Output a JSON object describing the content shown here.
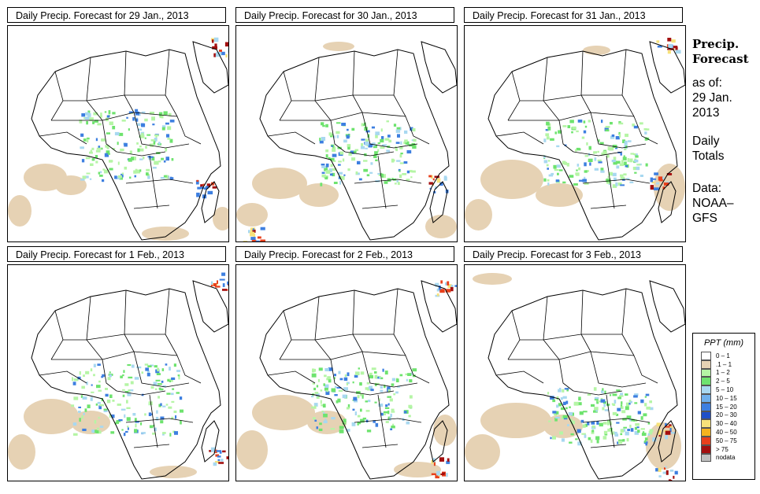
{
  "panels": [
    {
      "title": "Daily Precip. Forecast for  29 Jan., 2013"
    },
    {
      "title": "Daily Precip. Forecast for  30 Jan., 2013"
    },
    {
      "title": "Daily Precip. Forecast for  31 Jan., 2013"
    },
    {
      "title": "Daily Precip. Forecast for  1 Feb., 2013"
    },
    {
      "title": "Daily Precip. Forecast for  2 Feb., 2013"
    },
    {
      "title": "Daily Precip. Forecast for  3 Feb., 2013"
    }
  ],
  "side": {
    "title_line1": "Precip.",
    "title_line2": "Forecast",
    "asof_line1": "as of:",
    "asof_line2": "29 Jan.",
    "asof_line3": "2013",
    "daily_line1": "Daily",
    "daily_line2": "Totals",
    "data_line1": "Data:",
    "data_line2": "NOAA–",
    "data_line3": "GFS"
  },
  "legend": {
    "title": "PPT (mm)",
    "items": [
      {
        "label": "0 – 1",
        "color": "#ffffff"
      },
      {
        "label": ".1 – 1",
        "color": "#e6d2b4"
      },
      {
        "label": "1 – 2",
        "color": "#b5f5a5"
      },
      {
        "label": "2 – 5",
        "color": "#6ee36e"
      },
      {
        "label": "5 – 10",
        "color": "#a8d8f0"
      },
      {
        "label": "10 – 15",
        "color": "#6fb0ec"
      },
      {
        "label": "15 – 20",
        "color": "#3d7fe0"
      },
      {
        "label": "20 – 30",
        "color": "#1f4fc8"
      },
      {
        "label": "30 – 40",
        "color": "#f7e27a"
      },
      {
        "label": "40 – 50",
        "color": "#f5b31f"
      },
      {
        "label": "50 – 75",
        "color": "#e8401c"
      },
      {
        "label": "> 75",
        "color": "#a30f0f"
      },
      {
        "label": "nodata",
        "color": "#bfbfbf"
      }
    ]
  },
  "colors": {
    "dry": "#e6d2b4",
    "light": "#b5f5a5",
    "green": "#6ee36e",
    "lightblue": "#a8d8f0",
    "blue": "#3d7fe0",
    "red": "#e8401c",
    "darkred": "#a30f0f",
    "yellow": "#f7e27a"
  }
}
